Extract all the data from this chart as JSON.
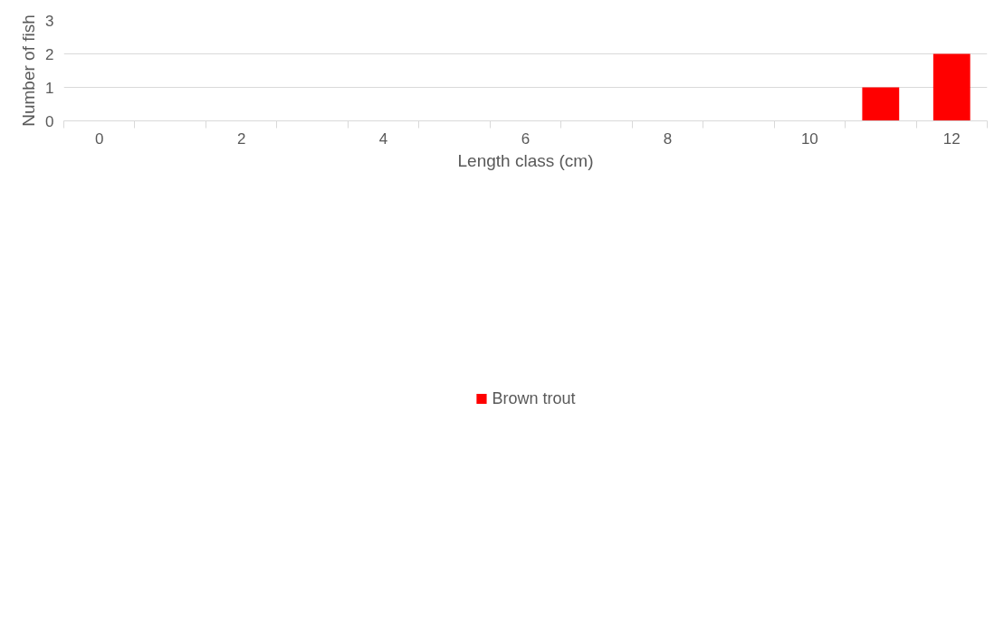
{
  "chart_data": {
    "type": "bar",
    "xlabel": "Length class (cm)",
    "ylabel": "Number of fish",
    "categories": [
      "0",
      null,
      "2",
      null,
      "4",
      null,
      "6",
      null,
      "8",
      null,
      "10",
      null,
      "12"
    ],
    "series": [
      {
        "name": "Brown trout",
        "color": "#ff0000",
        "values": [
          0,
          0,
          0,
          0,
          0,
          0,
          0,
          0,
          0,
          0,
          0,
          1,
          2
        ]
      }
    ],
    "ylim": [
      0,
      3
    ],
    "yticks": [
      0,
      1,
      2,
      3
    ],
    "grid": "y",
    "legend": "bottom"
  }
}
